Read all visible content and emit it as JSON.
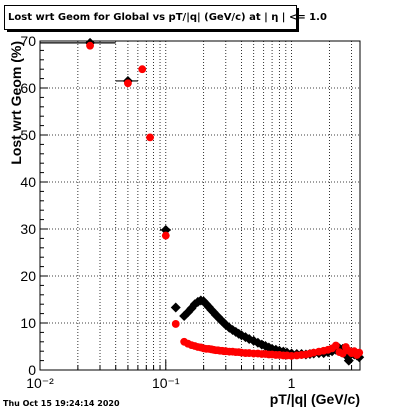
{
  "chart_data": {
    "type": "scatter",
    "title": "Lost wrt Geom for Global vs pT/|q| (GeV/c) at |  η | <= 1.0",
    "xlabel": "pT/|q| (GeV/c)",
    "ylabel": "Lost wrt Geom (%)",
    "x_scale": "log",
    "xlim": [
      0.01,
      3.5
    ],
    "ylim": [
      0,
      70
    ],
    "x_tick_labels": [
      "10⁻²",
      "10⁻¹",
      "1"
    ],
    "y_tick_labels": [
      "0",
      "10",
      "20",
      "30",
      "40",
      "50",
      "60",
      "70"
    ],
    "grid": true,
    "series": [
      {
        "color": "#000000",
        "marker": "diamond",
        "points": [
          [
            0.025,
            69.6
          ],
          [
            0.05,
            61.5
          ],
          [
            0.1,
            29.8
          ],
          [
            0.12,
            13.3
          ],
          [
            0.14,
            11.5
          ],
          [
            0.15,
            12.3
          ],
          [
            0.16,
            13.1
          ],
          [
            0.17,
            14.0
          ],
          [
            0.18,
            14.5
          ],
          [
            0.19,
            14.8
          ],
          [
            0.2,
            14.6
          ],
          [
            0.21,
            14.0
          ],
          [
            0.22,
            13.4
          ],
          [
            0.23,
            12.8
          ],
          [
            0.24,
            12.3
          ],
          [
            0.25,
            11.7
          ],
          [
            0.26,
            11.3
          ],
          [
            0.27,
            10.8
          ],
          [
            0.28,
            10.4
          ],
          [
            0.29,
            10.0
          ],
          [
            0.3,
            9.6
          ],
          [
            0.32,
            9.0
          ],
          [
            0.34,
            8.5
          ],
          [
            0.36,
            8.1
          ],
          [
            0.38,
            7.7
          ],
          [
            0.4,
            7.4
          ],
          [
            0.43,
            7.0
          ],
          [
            0.46,
            6.6
          ],
          [
            0.5,
            6.2
          ],
          [
            0.54,
            5.8
          ],
          [
            0.58,
            5.4
          ],
          [
            0.62,
            5.1
          ],
          [
            0.66,
            4.8
          ],
          [
            0.7,
            4.5
          ],
          [
            0.75,
            4.3
          ],
          [
            0.8,
            4.1
          ],
          [
            0.86,
            3.9
          ],
          [
            0.92,
            3.7
          ],
          [
            1.0,
            3.5
          ],
          [
            1.1,
            3.4
          ],
          [
            1.2,
            3.4
          ],
          [
            1.3,
            3.3
          ],
          [
            1.4,
            3.4
          ],
          [
            1.5,
            3.5
          ],
          [
            1.65,
            3.6
          ],
          [
            1.8,
            3.6
          ],
          [
            1.95,
            3.8
          ],
          [
            2.1,
            4.0
          ],
          [
            2.25,
            4.3
          ],
          [
            2.4,
            4.6
          ],
          [
            2.55,
            4.5
          ],
          [
            2.7,
            3.2
          ],
          [
            2.85,
            2.0
          ],
          [
            3.0,
            3.5
          ],
          [
            3.15,
            3.3
          ],
          [
            3.3,
            3.1
          ],
          [
            3.45,
            2.7
          ]
        ]
      },
      {
        "color": "#ff0000",
        "marker": "circle",
        "points": [
          [
            0.025,
            69.0
          ],
          [
            0.05,
            61.0
          ],
          [
            0.065,
            64.0
          ],
          [
            0.075,
            49.5
          ],
          [
            0.1,
            28.6
          ],
          [
            0.12,
            9.8
          ],
          [
            0.14,
            6.0
          ],
          [
            0.15,
            5.6
          ],
          [
            0.16,
            5.3
          ],
          [
            0.17,
            5.1
          ],
          [
            0.18,
            4.9
          ],
          [
            0.19,
            4.8
          ],
          [
            0.2,
            4.6
          ],
          [
            0.21,
            4.5
          ],
          [
            0.22,
            4.5
          ],
          [
            0.23,
            4.4
          ],
          [
            0.24,
            4.3
          ],
          [
            0.25,
            4.2
          ],
          [
            0.26,
            4.2
          ],
          [
            0.27,
            4.1
          ],
          [
            0.28,
            4.1
          ],
          [
            0.29,
            4.0
          ],
          [
            0.3,
            4.0
          ],
          [
            0.32,
            3.9
          ],
          [
            0.34,
            3.9
          ],
          [
            0.36,
            3.8
          ],
          [
            0.38,
            3.8
          ],
          [
            0.4,
            3.7
          ],
          [
            0.43,
            3.6
          ],
          [
            0.46,
            3.6
          ],
          [
            0.5,
            3.5
          ],
          [
            0.54,
            3.5
          ],
          [
            0.58,
            3.4
          ],
          [
            0.62,
            3.4
          ],
          [
            0.66,
            3.3
          ],
          [
            0.7,
            3.3
          ],
          [
            0.75,
            3.2
          ],
          [
            0.8,
            3.2
          ],
          [
            0.86,
            3.1
          ],
          [
            0.92,
            3.1
          ],
          [
            1.0,
            3.0
          ],
          [
            1.1,
            3.1
          ],
          [
            1.2,
            3.2
          ],
          [
            1.3,
            3.3
          ],
          [
            1.4,
            3.5
          ],
          [
            1.5,
            3.7
          ],
          [
            1.65,
            3.9
          ],
          [
            1.8,
            4.1
          ],
          [
            1.95,
            4.3
          ],
          [
            2.1,
            4.6
          ],
          [
            2.25,
            5.2
          ],
          [
            2.4,
            3.8
          ],
          [
            2.55,
            3.5
          ],
          [
            2.7,
            4.9
          ],
          [
            2.85,
            4.1
          ],
          [
            3.0,
            3.6
          ],
          [
            3.15,
            4.0
          ],
          [
            3.3,
            3.2
          ],
          [
            3.45,
            3.7
          ]
        ]
      }
    ]
  },
  "footer": {
    "timestamp": "Thu Oct 15 19:24:14 2020"
  }
}
